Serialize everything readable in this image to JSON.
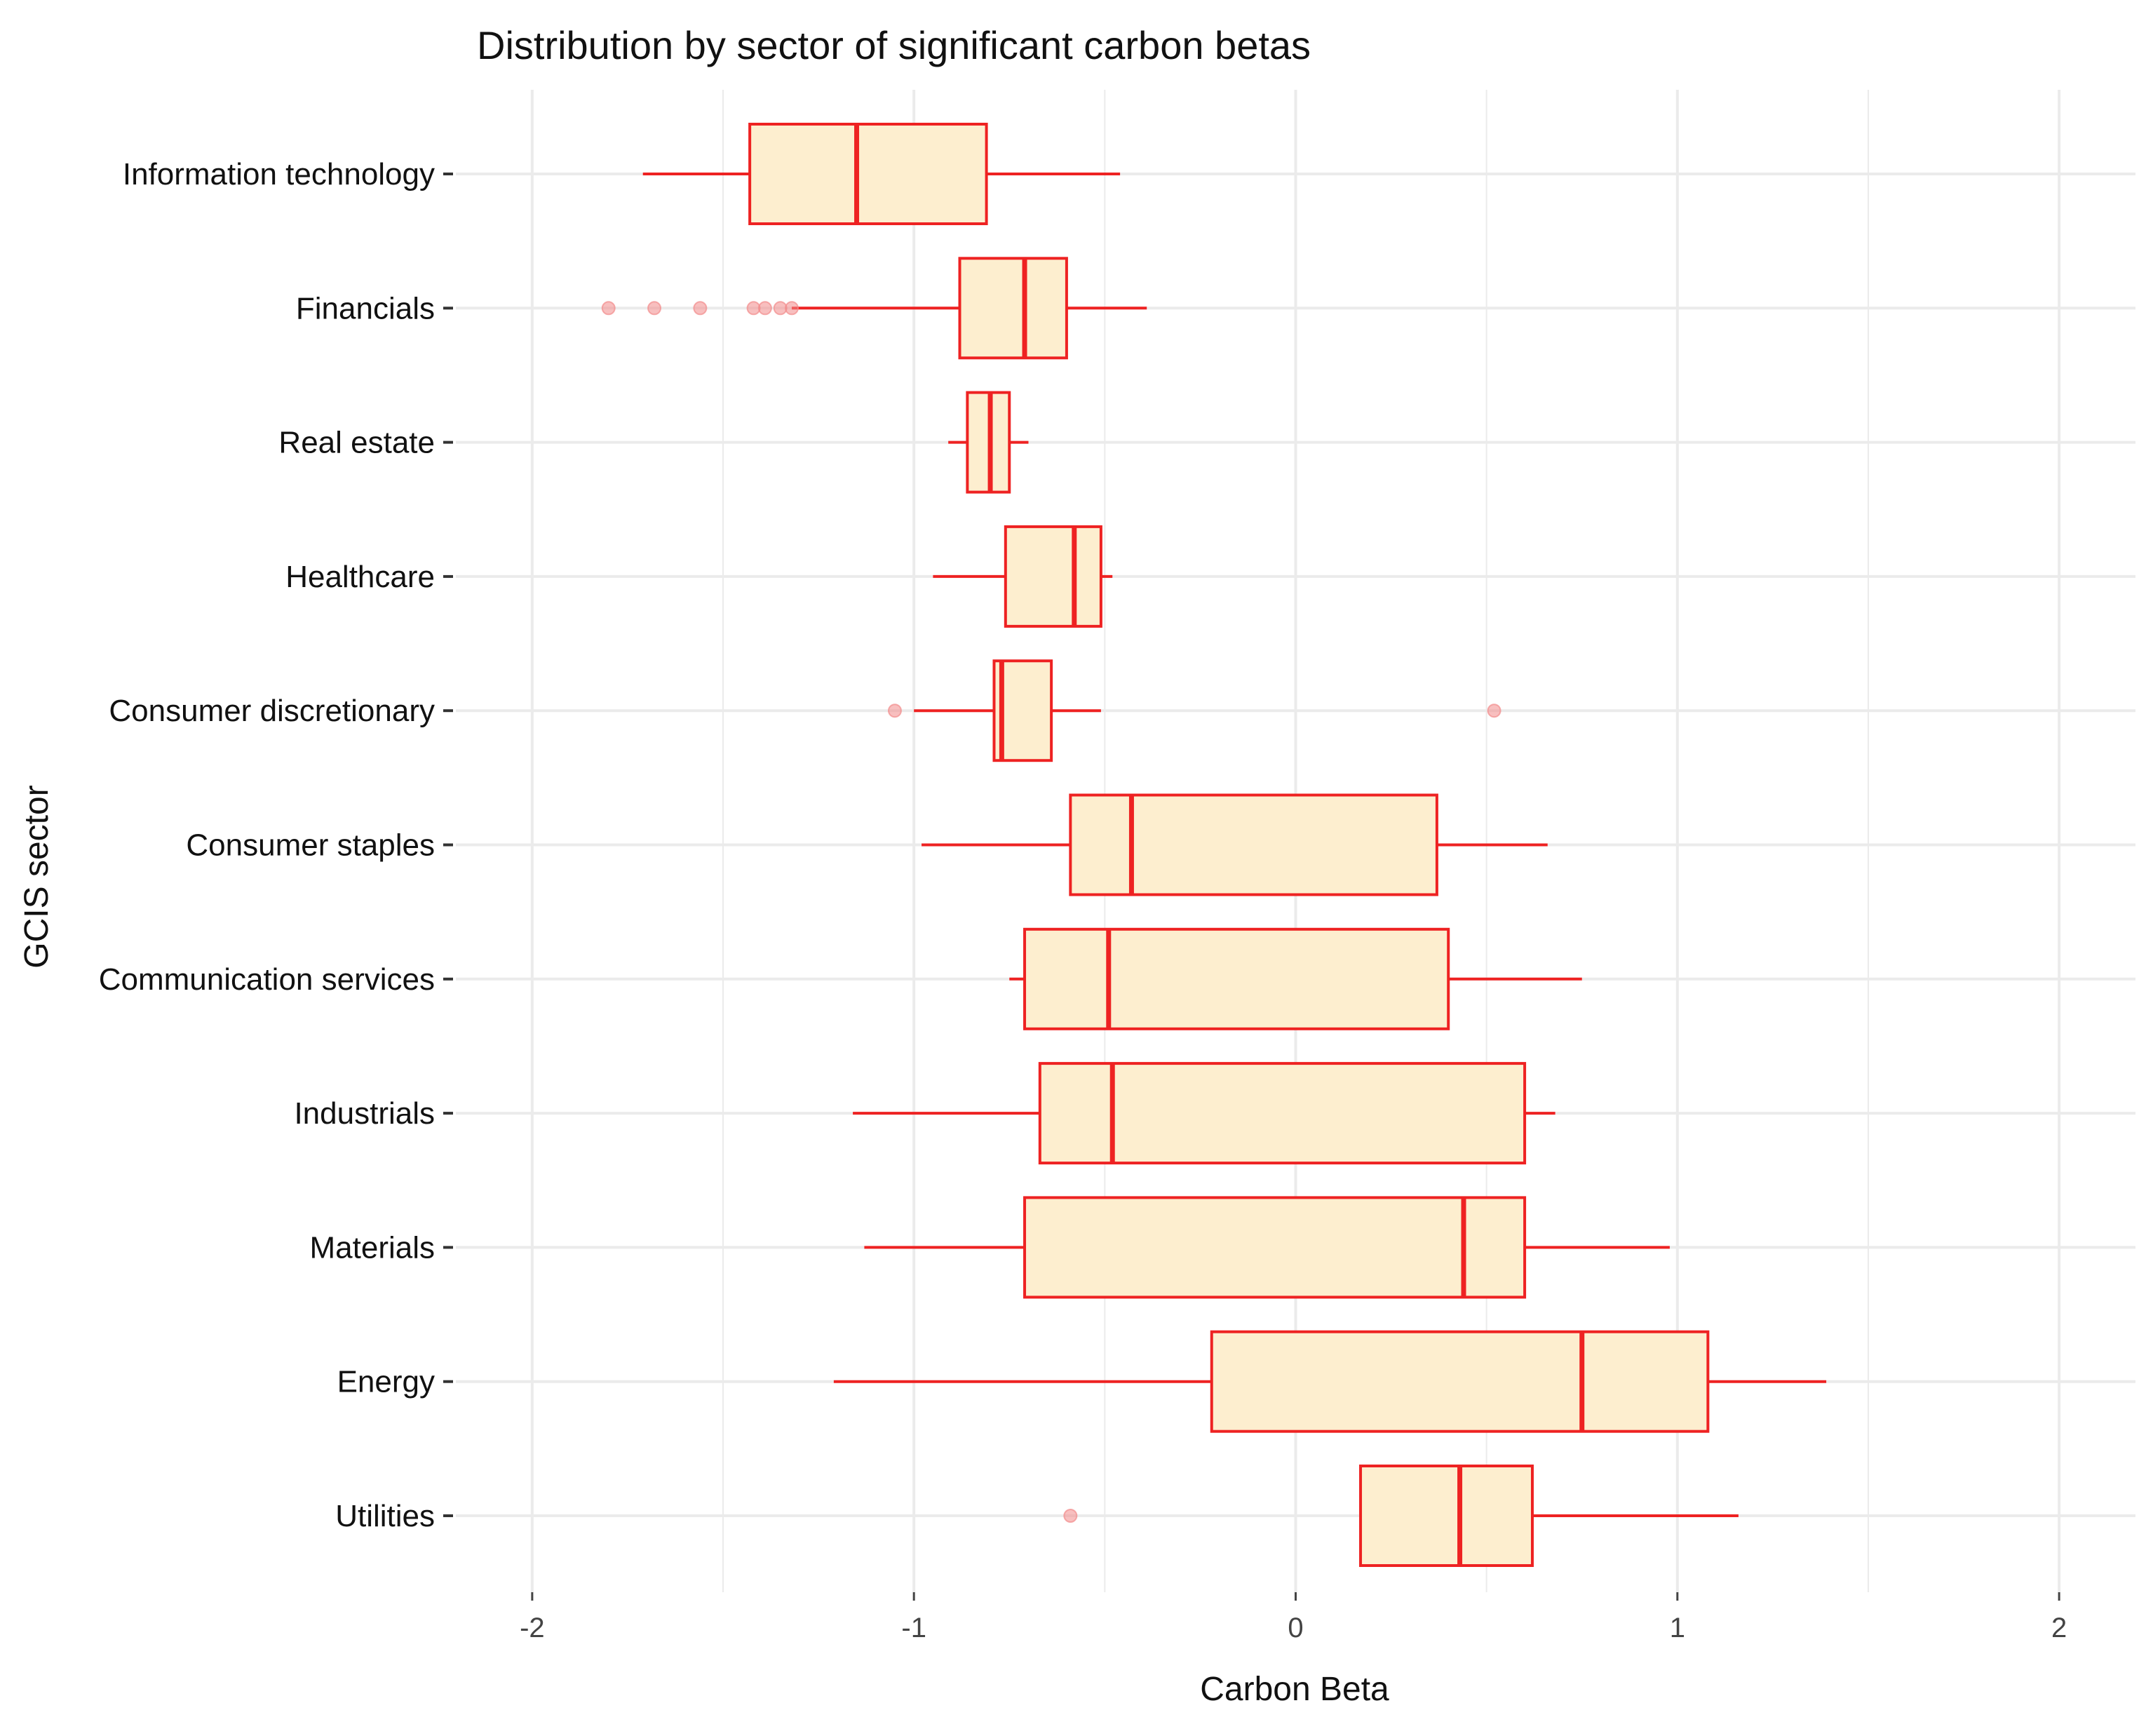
{
  "chart_data": {
    "type": "boxplot",
    "title": "Distribution by sector of significant carbon betas",
    "xlabel": "Carbon Beta",
    "ylabel": "GCIS sector",
    "xlim": [
      -2.2,
      2.2
    ],
    "x_ticks": [
      -2,
      -1,
      0,
      1,
      2
    ],
    "grid": true,
    "legend": "none",
    "colors": {
      "box_fill": "#fdeecf",
      "box_stroke": "#ee2222",
      "outlier": "#f28b8b",
      "grid": "#ebebeb"
    },
    "categories": [
      "Information technology",
      "Financials",
      "Real estate",
      "Healthcare",
      "Consumer discretionary",
      "Consumer staples",
      "Communication services",
      "Industrials",
      "Materials",
      "Energy",
      "Utilities"
    ],
    "boxes": [
      {
        "min": -1.71,
        "q1": -1.43,
        "median": -1.15,
        "q3": -0.81,
        "max": -0.46,
        "outliers": []
      },
      {
        "min": -1.32,
        "q1": -0.88,
        "median": -0.71,
        "q3": -0.6,
        "max": -0.39,
        "outliers": [
          -1.8,
          -1.68,
          -1.56,
          -1.42,
          -1.39,
          -1.35,
          -1.32
        ]
      },
      {
        "min": -0.91,
        "q1": -0.86,
        "median": -0.8,
        "q3": -0.75,
        "max": -0.7,
        "outliers": []
      },
      {
        "min": -0.95,
        "q1": -0.76,
        "median": -0.58,
        "q3": -0.51,
        "max": -0.48,
        "outliers": []
      },
      {
        "min": -1.0,
        "q1": -0.79,
        "median": -0.77,
        "q3": -0.64,
        "max": -0.51,
        "outliers": [
          -1.05,
          0.52
        ]
      },
      {
        "min": -0.98,
        "q1": -0.59,
        "median": -0.43,
        "q3": 0.37,
        "max": 0.66,
        "outliers": []
      },
      {
        "min": -0.75,
        "q1": -0.71,
        "median": -0.49,
        "q3": 0.4,
        "max": 0.75,
        "outliers": []
      },
      {
        "min": -1.16,
        "q1": -0.67,
        "median": -0.48,
        "q3": 0.6,
        "max": 0.68,
        "outliers": []
      },
      {
        "min": -1.13,
        "q1": -0.71,
        "median": 0.44,
        "q3": 0.6,
        "max": 0.98,
        "outliers": []
      },
      {
        "min": -1.21,
        "q1": -0.22,
        "median": 0.75,
        "q3": 1.08,
        "max": 1.39,
        "outliers": []
      },
      {
        "min": 0.17,
        "q1": 0.17,
        "median": 0.43,
        "q3": 0.62,
        "max": 1.16,
        "outliers": [
          -0.59
        ]
      }
    ]
  }
}
